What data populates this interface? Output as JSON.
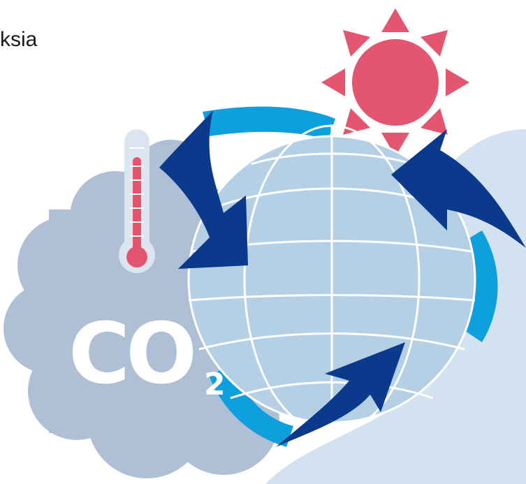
{
  "caption": {
    "text": "ksia"
  },
  "co2_label": {
    "main": "CO",
    "subscript": "2"
  },
  "icons": [
    "sun-icon",
    "thermometer-icon",
    "globe-icon",
    "cycle-arrows-icon",
    "cloud-icon",
    "co2-icon"
  ],
  "colors": {
    "sun": "#e4566f",
    "globe": "#b5cfe5",
    "globe_lines": "#ffffff",
    "arrow_dark": "#0b3a8c",
    "arrow_light": "#0ea0dc",
    "cloud": "#aebfd6",
    "backdrop": "#d3e2f0",
    "thermometer_red": "#e4566f"
  }
}
